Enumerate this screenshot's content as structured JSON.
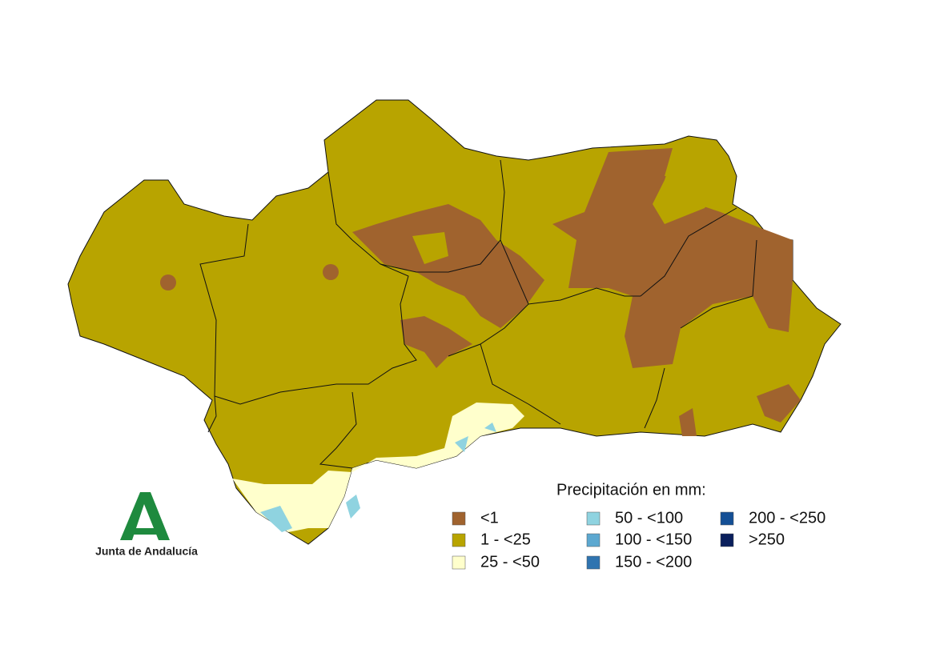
{
  "legend": {
    "title": "Precipitación en mm:",
    "items": [
      {
        "label": "<1",
        "color": "#a0632e"
      },
      {
        "label": "1 - <25",
        "color": "#b8a400"
      },
      {
        "label": "25 - <50",
        "color": "#ffffcc"
      },
      {
        "label": "50 - <100",
        "color": "#8fd3e0"
      },
      {
        "label": "100 - <150",
        "color": "#5ca8d0"
      },
      {
        "label": "150 - <200",
        "color": "#2f74b0"
      },
      {
        "label": "200 - <250",
        "color": "#144f95"
      },
      {
        "label": ">250",
        "color": "#0a1f5c"
      }
    ]
  },
  "logo": {
    "text": "Junta de Andalucía"
  }
}
